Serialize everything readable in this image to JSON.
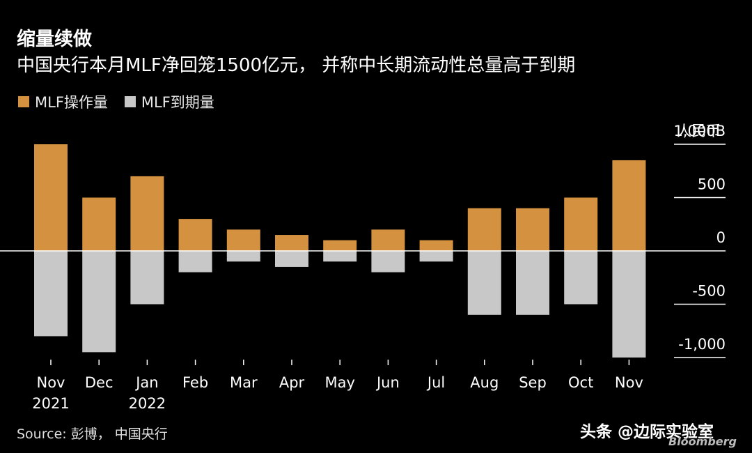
{
  "header": {
    "title": "缩量续做",
    "subtitle": "中国央行本月MLF净回笼1500亿元， 并称中长期流动性总量高于到期"
  },
  "footer": {
    "source": "Source: 彭博， 中国央行",
    "watermark": "头条 @边际实验室",
    "brand": "Bloomberg"
  },
  "colors": {
    "operation": "#d4913f",
    "maturity": "#c8c8c8",
    "axis": "#ffffff",
    "grid": "#ffffff"
  },
  "chart_data": {
    "type": "bar",
    "title": "缩量续做",
    "subtitle": "中国央行本月MLF净回笼1500亿元， 并称中长期流动性总量高于到期",
    "categories": [
      "Nov",
      "Dec",
      "Jan",
      "Feb",
      "Mar",
      "Apr",
      "May",
      "Jun",
      "Jul",
      "Aug",
      "Sep",
      "Oct",
      "Nov"
    ],
    "category_sublabels": [
      "2021",
      "",
      "2022",
      "",
      "",
      "",
      "",
      "",
      "",
      "",
      "",
      "",
      ""
    ],
    "series": [
      {
        "name": "MLF操作量",
        "values": [
          1000,
          500,
          700,
          300,
          200,
          150,
          100,
          200,
          100,
          400,
          400,
          500,
          850
        ]
      },
      {
        "name": "MLF到期量",
        "values": [
          -800,
          -950,
          -500,
          -200,
          -100,
          -150,
          -100,
          -200,
          -100,
          -600,
          -600,
          -500,
          -1000
        ]
      }
    ],
    "y_unit_label": "人民币",
    "ylim": [
      -1000,
      1000
    ],
    "y_ticks": [
      1000,
      500,
      0,
      -500,
      -1000
    ],
    "y_tick_labels": [
      "1,000B",
      "500",
      "0",
      "-500",
      "-1,000"
    ],
    "legend_position": "top-left",
    "grid": true,
    "stacked": true
  }
}
